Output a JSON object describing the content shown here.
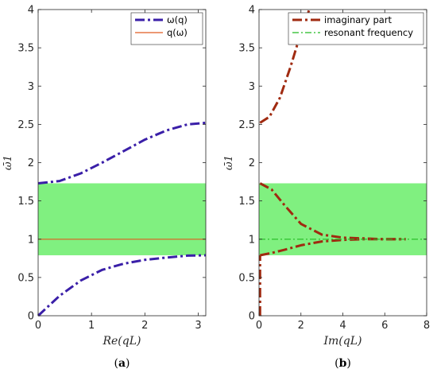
{
  "chart_data": [
    {
      "type": "line",
      "panel_label_open": "(",
      "panel_label": "a",
      "panel_label_close": ")",
      "xlabel": "Re(qL)",
      "ylabel": "ω̄1",
      "xlim": [
        0,
        3.1416
      ],
      "ylim": [
        0,
        4
      ],
      "xticks": [
        "0",
        "1",
        "2",
        "3"
      ],
      "xtick_values": [
        0,
        1,
        2,
        3
      ],
      "yticks": [
        "0",
        "0.5",
        "1",
        "1.5",
        "2",
        "2.5",
        "3",
        "3.5",
        "4"
      ],
      "ytick_values": [
        0,
        0.5,
        1,
        1.5,
        2,
        2.5,
        3,
        3.5,
        4
      ],
      "shaded_band": {
        "from": 0.79,
        "to": 1.73,
        "color": "#80f080"
      },
      "legend_position": "top-right",
      "series": [
        {
          "name": "ω(q)",
          "style": "dash-dot",
          "color": "#3a1fa8",
          "x": [
            0,
            0.4,
            0.8,
            1.2,
            1.6,
            2.0,
            2.4,
            2.8,
            3.1416
          ],
          "y": [
            0,
            0.26,
            0.46,
            0.6,
            0.68,
            0.73,
            0.76,
            0.785,
            0.79
          ]
        },
        {
          "name": "ω(q)",
          "style": "dash-dot",
          "color": "#3a1fa8",
          "x": [
            0,
            0.4,
            0.8,
            1.2,
            1.6,
            2.0,
            2.4,
            2.8,
            3.1416
          ],
          "y": [
            1.73,
            1.76,
            1.86,
            2.0,
            2.15,
            2.3,
            2.42,
            2.5,
            2.52
          ]
        },
        {
          "name": "q(ω)",
          "style": "solid",
          "color": "#e05a20",
          "x": [
            0,
            3.1416
          ],
          "y": [
            1.0,
            1.0
          ]
        }
      ]
    },
    {
      "type": "line",
      "panel_label_open": "(",
      "panel_label": "b",
      "panel_label_close": ")",
      "xlabel": "Im(qL)",
      "ylabel": "ω̄1",
      "xlim": [
        0,
        8
      ],
      "ylim": [
        0,
        4
      ],
      "xticks": [
        "0",
        "2",
        "4",
        "6",
        "8"
      ],
      "xtick_values": [
        0,
        2,
        4,
        6,
        8
      ],
      "yticks": [
        "0",
        "0.5",
        "1",
        "1.5",
        "2",
        "2.5",
        "3",
        "3.5",
        "4"
      ],
      "ytick_values": [
        0,
        0.5,
        1,
        1.5,
        2,
        2.5,
        3,
        3.5,
        4
      ],
      "shaded_band": {
        "from": 0.79,
        "to": 1.73,
        "color": "#80f080"
      },
      "legend_position": "top-right",
      "series": [
        {
          "name": "imaginary part",
          "style": "dash-dot",
          "color": "#a02a10",
          "x": [
            0.05,
            0.5,
            1.0,
            1.5,
            2.0,
            2.4
          ],
          "y": [
            2.52,
            2.6,
            2.85,
            3.25,
            3.7,
            4.0
          ]
        },
        {
          "name": "imaginary part",
          "style": "dash-dot",
          "color": "#a02a10",
          "x": [
            0.05,
            0.6,
            1.2,
            2.0,
            3.0,
            4.0,
            5.0,
            6.0,
            7.0
          ],
          "y": [
            1.73,
            1.65,
            1.45,
            1.2,
            1.06,
            1.02,
            1.01,
            1.0,
            1.0
          ]
        },
        {
          "name": "imaginary part",
          "style": "dash-dot",
          "color": "#a02a10",
          "x": [
            0.05,
            0.6,
            1.2,
            2.0,
            3.0,
            4.0,
            5.0,
            6.0,
            7.0
          ],
          "y": [
            0.79,
            0.82,
            0.86,
            0.92,
            0.97,
            0.99,
            1.0,
            1.0,
            1.0
          ]
        },
        {
          "name": "imaginary part",
          "style": "dash-dot",
          "color": "#a02a10",
          "x": [
            0.05,
            0.05
          ],
          "y": [
            0.0,
            0.79
          ]
        },
        {
          "name": "resonant frequency",
          "style": "dash-dot",
          "color": "#22bb22",
          "x": [
            0,
            8
          ],
          "y": [
            1.0,
            1.0
          ]
        }
      ]
    }
  ]
}
